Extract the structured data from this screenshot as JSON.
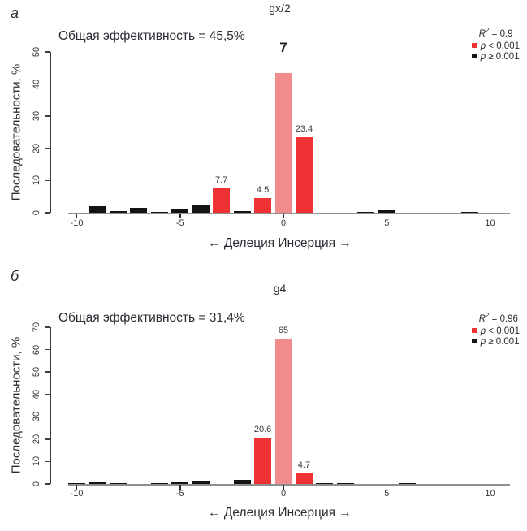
{
  "colors": {
    "significant_bar": "#EE3134",
    "nonsignificant_bar": "#141414",
    "reference_bar": "#F28B8B",
    "text": "#2B2B33",
    "x_axis_line": "#8F8F8F",
    "y_axis_line": "#3C3C3C"
  },
  "chart_data": [
    {
      "type": "bar",
      "panel_label": "а",
      "title": "gx/2",
      "efficiency_text": "Общая эффективность = 45,5%",
      "xlabel": "← Делеция Инсерция →",
      "ylabel": "Последовательности, %",
      "xlim": [
        -11,
        11
      ],
      "ylim": [
        0,
        50
      ],
      "xticks": [
        -10,
        -5,
        0,
        5,
        10
      ],
      "yticks": [
        0,
        10,
        20,
        30,
        40,
        50
      ],
      "legend": {
        "position": "top-right",
        "r2": {
          "base": "R",
          "sup": "2",
          "rest": " = 0.9"
        },
        "items": [
          {
            "p": "p",
            "text": " < 0.001",
            "color_key": "significant_bar"
          },
          {
            "p": "p",
            "text": " ≥ 0.001",
            "color_key": "nonsignificant_bar"
          }
        ]
      },
      "peak_annotation": "7",
      "bars": [
        {
          "x": -9,
          "value": 2.0,
          "group": "ns"
        },
        {
          "x": -8,
          "value": 0.6,
          "group": "ns"
        },
        {
          "x": -7,
          "value": 1.6,
          "group": "ns"
        },
        {
          "x": -6,
          "value": 0.35,
          "group": "ns"
        },
        {
          "x": -5,
          "value": 1.1,
          "group": "ns"
        },
        {
          "x": -4,
          "value": 2.5,
          "group": "ns"
        },
        {
          "x": -3,
          "value": 7.7,
          "group": "sig",
          "label": "7.7"
        },
        {
          "x": -2,
          "value": 0.5,
          "group": "ns"
        },
        {
          "x": -1,
          "value": 4.5,
          "group": "sig",
          "label": "4.5"
        },
        {
          "x": 0,
          "value": 43.5,
          "group": "ref"
        },
        {
          "x": 1,
          "value": 23.4,
          "group": "sig",
          "label": "23.4"
        },
        {
          "x": 4,
          "value": 0.2,
          "group": "ns"
        },
        {
          "x": 5,
          "value": 0.8,
          "group": "ns"
        },
        {
          "x": 9,
          "value": 0.3,
          "group": "ns"
        }
      ]
    },
    {
      "type": "bar",
      "panel_label": "б",
      "title": "g4",
      "efficiency_text": "Общая эффективность = 31,4%",
      "xlabel": "← Делеция Инсерция →",
      "ylabel": "Последовательности, %",
      "xlim": [
        -11,
        11
      ],
      "ylim": [
        0,
        70
      ],
      "xticks": [
        -10,
        -5,
        0,
        5,
        10
      ],
      "yticks": [
        0,
        10,
        20,
        30,
        40,
        50,
        60,
        70
      ],
      "legend": {
        "position": "top-right",
        "r2": {
          "base": "R",
          "sup": "2",
          "rest": " = 0.96"
        },
        "items": [
          {
            "p": "p",
            "text": " < 0.001",
            "color_key": "significant_bar"
          },
          {
            "p": "p",
            "text": " ≥ 0.001",
            "color_key": "nonsignificant_bar"
          }
        ]
      },
      "peak_annotation": "",
      "bars": [
        {
          "x": -10,
          "value": 0.3,
          "group": "ns"
        },
        {
          "x": -9,
          "value": 0.9,
          "group": "ns"
        },
        {
          "x": -8,
          "value": 0.15,
          "group": "ns"
        },
        {
          "x": -6,
          "value": 0.4,
          "group": "ns"
        },
        {
          "x": -5,
          "value": 0.7,
          "group": "ns"
        },
        {
          "x": -4,
          "value": 1.3,
          "group": "ns"
        },
        {
          "x": -2,
          "value": 1.8,
          "group": "ns"
        },
        {
          "x": -1,
          "value": 20.6,
          "group": "sig",
          "label": "20.6"
        },
        {
          "x": 0,
          "value": 65,
          "group": "ref",
          "label": "65"
        },
        {
          "x": 1,
          "value": 4.7,
          "group": "sig",
          "label": "4.7"
        },
        {
          "x": 2,
          "value": 0.3,
          "group": "ns"
        },
        {
          "x": 3,
          "value": 0.25,
          "group": "ns"
        },
        {
          "x": 6,
          "value": 0.4,
          "group": "ns"
        }
      ]
    }
  ]
}
